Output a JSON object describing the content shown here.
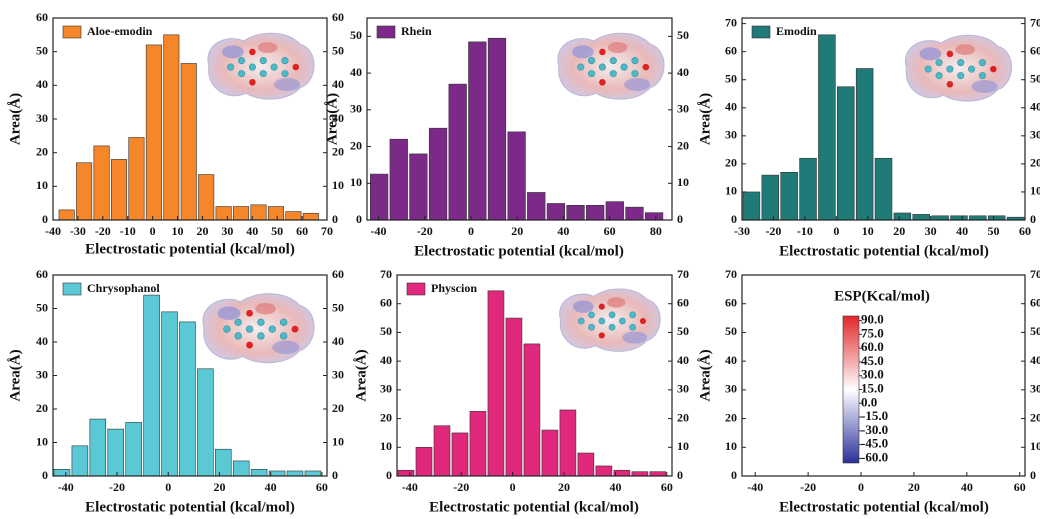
{
  "chart_data": [
    {
      "type": "histogram",
      "xlabel": "Electrostatic potential (kcal/mol)",
      "ylabel": "Area(Å)",
      "bins": [
        -38,
        -31,
        -24,
        -17,
        -10,
        -3,
        4,
        11,
        18,
        25,
        32,
        39,
        46,
        53,
        60,
        67
      ],
      "series": [
        {
          "name": "Aloe-emodin",
          "color": "#f5862a",
          "values": [
            3,
            17,
            22,
            18,
            24.5,
            52,
            55,
            46.5,
            13.5,
            4,
            4,
            4.5,
            4,
            2.5,
            2
          ]
        }
      ],
      "xlim": [
        -40,
        70
      ],
      "xticks": [
        -40,
        -30,
        -20,
        -10,
        0,
        10,
        20,
        30,
        40,
        50,
        60,
        70
      ],
      "ylim": [
        0,
        60
      ],
      "yticks": [
        0,
        10,
        20,
        30,
        40,
        50,
        60
      ],
      "y2lim": [
        0,
        60
      ],
      "y2ticks": [
        0,
        10,
        20,
        30,
        40,
        50,
        60
      ]
    },
    {
      "type": "histogram",
      "xlabel": "Electrostatic potential (kcal/mol)",
      "ylabel": "Area(Å)",
      "bins": [
        -44,
        -35.5,
        -27,
        -18.5,
        -10,
        -1.5,
        7,
        15.5,
        24,
        32.5,
        41,
        49.5,
        58,
        66.5,
        75,
        83.5
      ],
      "series": [
        {
          "name": "Rhein",
          "color": "#7b2a88",
          "values": [
            12.5,
            22,
            18,
            25,
            37,
            48.5,
            49.5,
            24,
            7.5,
            4.5,
            4,
            4,
            5,
            3.5,
            2
          ]
        }
      ],
      "xlim": [
        -45,
        87
      ],
      "xticks": [
        -40,
        -20,
        0,
        20,
        40,
        60,
        80
      ],
      "ylim": [
        0,
        55
      ],
      "yticks": [
        0,
        10,
        20,
        30,
        40,
        50
      ],
      "y2lim": [
        0,
        55
      ],
      "y2ticks": [
        0,
        10,
        20,
        30,
        40,
        50
      ]
    },
    {
      "type": "histogram",
      "xlabel": "Electrostatic potential (kcal/mol)",
      "ylabel": "Area(Å)",
      "bins": [
        -30,
        -24,
        -18,
        -12,
        -6,
        0,
        6,
        12,
        18,
        24,
        30,
        36,
        42,
        48,
        54,
        60
      ],
      "series": [
        {
          "name": "Emodin",
          "color": "#207a78",
          "values": [
            10,
            16,
            17,
            22,
            66,
            47.5,
            54,
            22,
            2.5,
            2,
            1.5,
            1.5,
            1.5,
            1.5,
            1
          ]
        }
      ],
      "xlim": [
        -30,
        60
      ],
      "xticks": [
        -30,
        -20,
        -10,
        0,
        10,
        20,
        30,
        40,
        50,
        60
      ],
      "ylim": [
        0,
        72
      ],
      "yticks": [
        0,
        10,
        20,
        30,
        40,
        50,
        60,
        70
      ],
      "y2lim": [
        0,
        72
      ],
      "y2ticks": [
        0,
        10,
        20,
        30,
        40,
        50,
        60,
        70
      ]
    },
    {
      "type": "histogram",
      "xlabel": "Electrostatic potential (kcal/mol)",
      "ylabel": "Area(Å)",
      "bins": [
        -45,
        -38,
        -31,
        -24,
        -17,
        -10,
        -3,
        4,
        11,
        18,
        25,
        32,
        39,
        46,
        53,
        60
      ],
      "series": [
        {
          "name": "Chrysophanol",
          "color": "#5bc8d6",
          "values": [
            2,
            9,
            17,
            14,
            16,
            54,
            49,
            46,
            32,
            8,
            4.5,
            2,
            1.5,
            1.5,
            1.5
          ]
        }
      ],
      "xlim": [
        -45,
        62
      ],
      "xticks": [
        -40,
        -20,
        0,
        20,
        40,
        60
      ],
      "ylim": [
        0,
        60
      ],
      "yticks": [
        0,
        10,
        20,
        30,
        40,
        50,
        60
      ],
      "y2lim": [
        0,
        60
      ],
      "y2ticks": [
        0,
        10,
        20,
        30,
        40,
        50,
        60
      ]
    },
    {
      "type": "histogram",
      "xlabel": "Electrostatic potential (kcal/mol)",
      "ylabel": "Area(Å)",
      "bins": [
        -45,
        -38,
        -31,
        -24,
        -17,
        -10,
        -3,
        4,
        11,
        18,
        25,
        32,
        39,
        46,
        53,
        60
      ],
      "series": [
        {
          "name": "Physcion",
          "color": "#e0287c",
          "values": [
            2,
            10,
            17.5,
            15,
            22.5,
            64.5,
            55,
            46,
            16,
            23,
            8,
            3.5,
            2,
            1.5,
            1.5
          ]
        }
      ],
      "xlim": [
        -45,
        62
      ],
      "xticks": [
        -40,
        -20,
        0,
        20,
        40,
        60
      ],
      "ylim": [
        0,
        70
      ],
      "yticks": [
        0,
        10,
        20,
        30,
        40,
        50,
        60,
        70
      ],
      "y2lim": [
        0,
        70
      ],
      "y2ticks": [
        0,
        10,
        20,
        30,
        40,
        50,
        60,
        70
      ]
    },
    {
      "type": "colorbar",
      "xlabel": "Electrostatic potential (kcal/mol)",
      "ylabel": "Area(Å)",
      "xlim": [
        -45,
        62
      ],
      "xticks": [
        -40,
        -20,
        0,
        20,
        40,
        60
      ],
      "ylim": [
        0,
        70
      ],
      "yticks": [
        0,
        10,
        20,
        30,
        40,
        50,
        60,
        70
      ],
      "y2lim": [
        0,
        70
      ],
      "y2ticks": [
        0,
        10,
        20,
        30,
        40,
        50,
        60,
        70
      ],
      "colorbar": {
        "title": "ESP(Kcal/mol)",
        "clim": [
          -65,
          95
        ],
        "colors": [
          "#2a2f9a",
          "#ffffff",
          "#e0262a"
        ],
        "ticks": [
          {
            "value": 90,
            "label": "90.0"
          },
          {
            "value": 75,
            "label": "75.0"
          },
          {
            "value": 60,
            "label": "60.0"
          },
          {
            "value": 45,
            "label": "45.0"
          },
          {
            "value": 30,
            "label": "30.0"
          },
          {
            "value": 15,
            "label": "15.0"
          },
          {
            "value": 0,
            "label": "0.0"
          },
          {
            "value": -15,
            "label": "-15.0"
          },
          {
            "value": -30,
            "label": "-30.0"
          },
          {
            "value": -45,
            "label": "-45.0"
          },
          {
            "value": -60,
            "label": "-60.0"
          }
        ]
      }
    }
  ]
}
